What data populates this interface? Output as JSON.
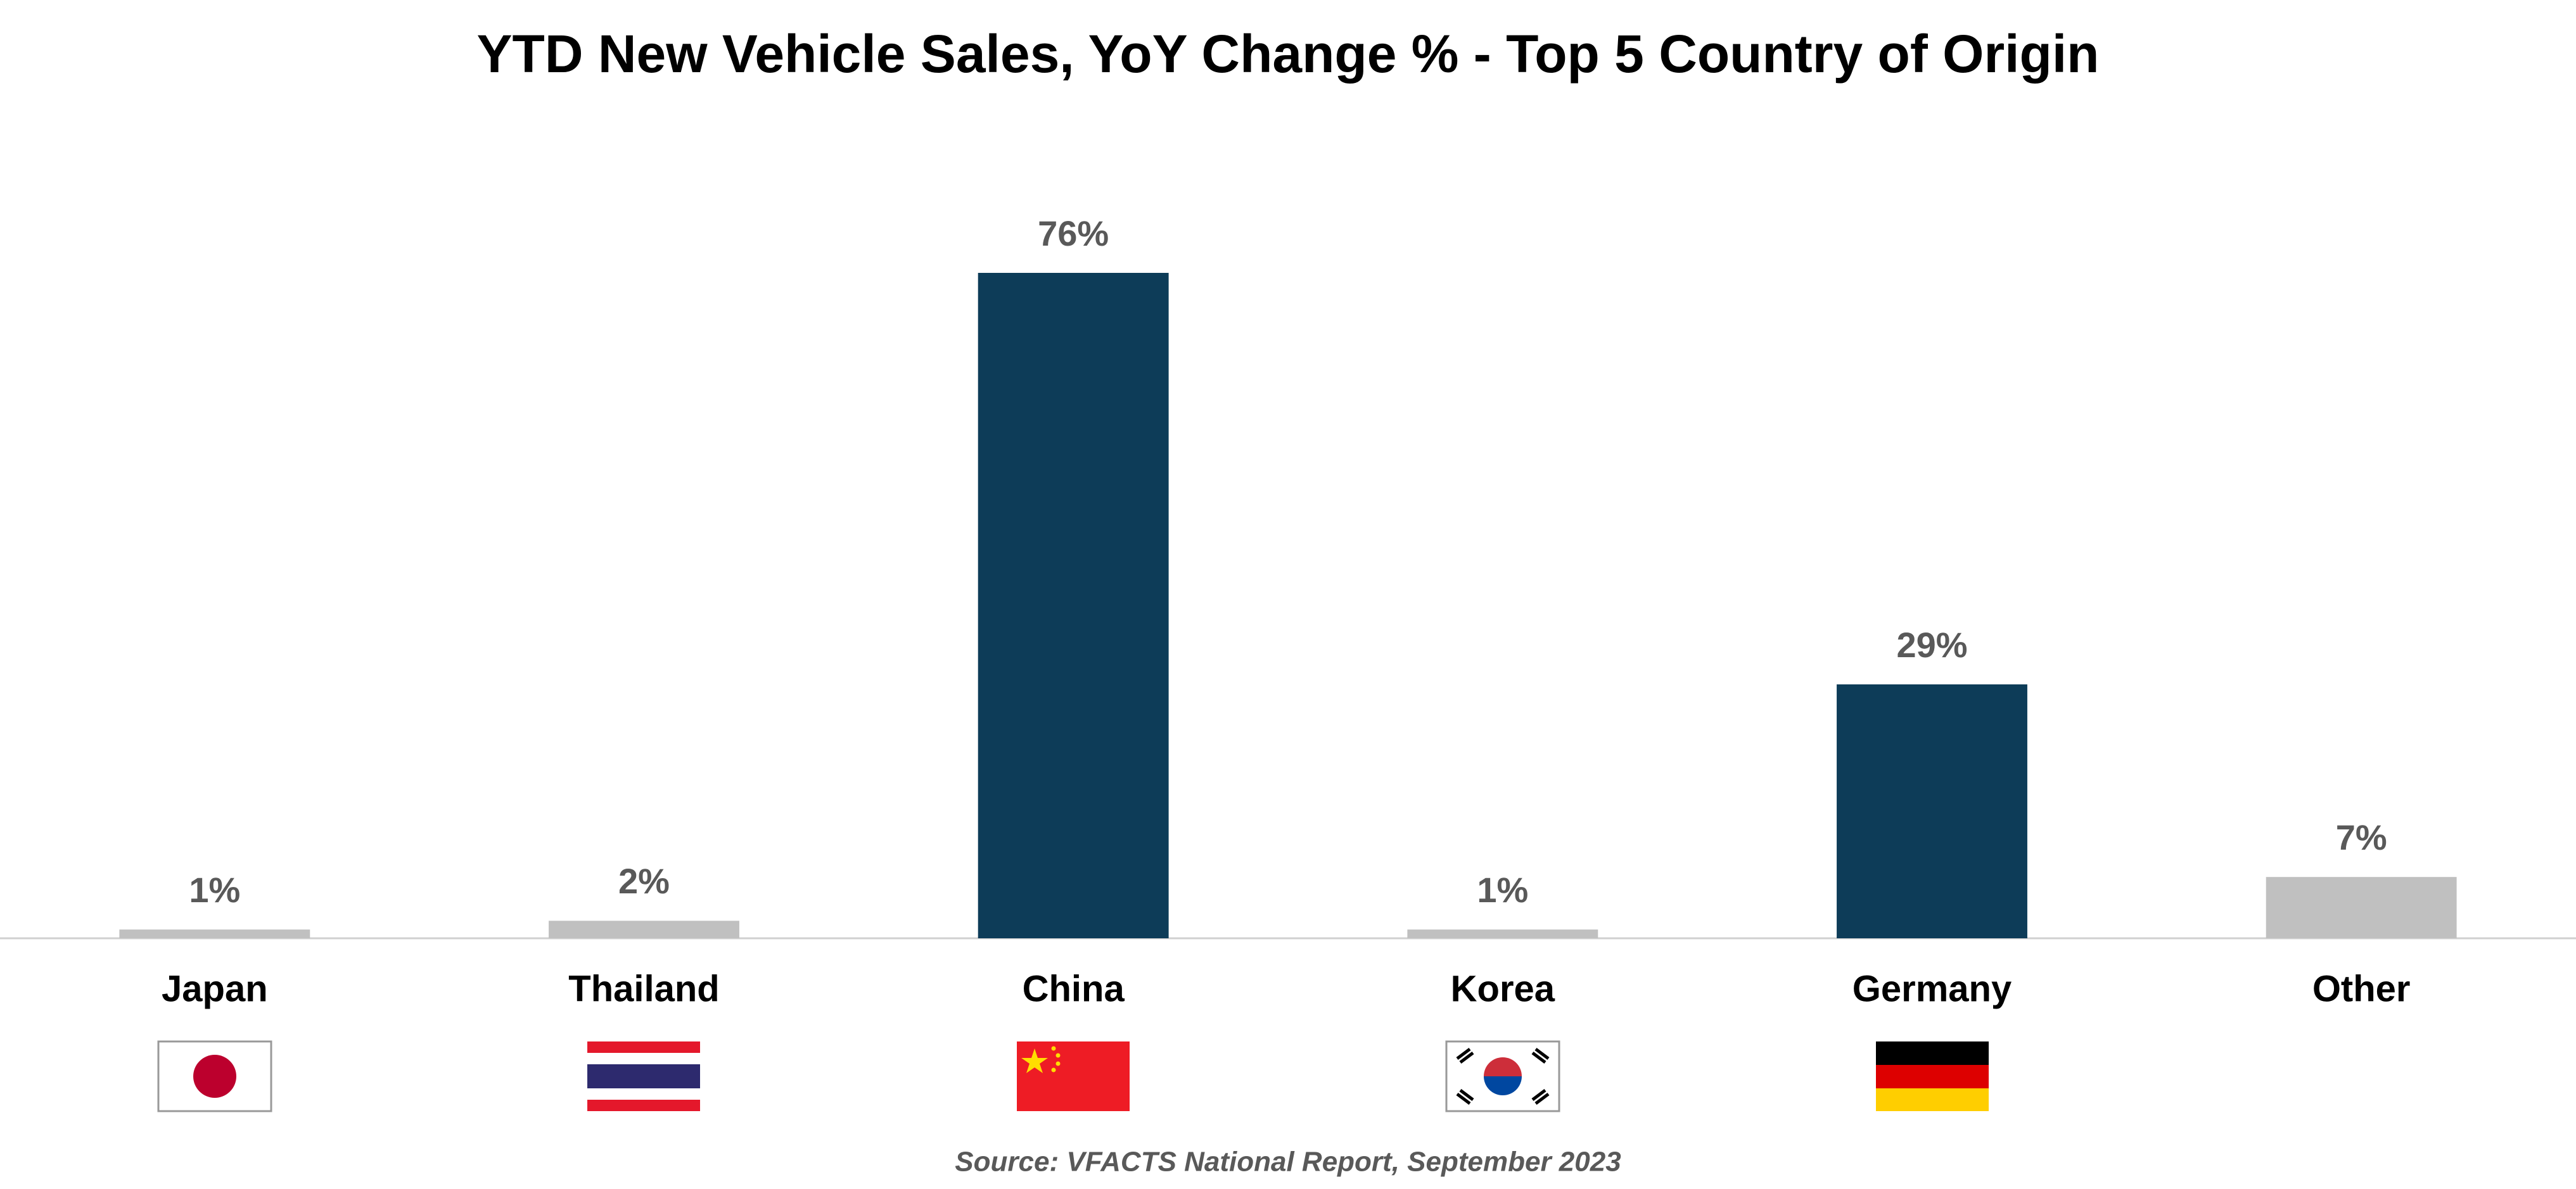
{
  "chart_data": {
    "type": "bar",
    "title": "YTD New Vehicle Sales, YoY Change % - Top 5 Country of Origin",
    "categories": [
      "Japan",
      "Thailand",
      "China",
      "Korea",
      "Germany",
      "Other"
    ],
    "values": [
      1,
      2,
      76,
      1,
      29,
      7
    ],
    "value_labels": [
      "1%",
      "2%",
      "76%",
      "1%",
      "29%",
      "7%"
    ],
    "colors": [
      "#c0c0c0",
      "#c0c0c0",
      "#0d3c58",
      "#c0c0c0",
      "#0d3c58",
      "#c0c0c0"
    ],
    "source": "Source:  VFACTS National Report,  September 2023"
  }
}
